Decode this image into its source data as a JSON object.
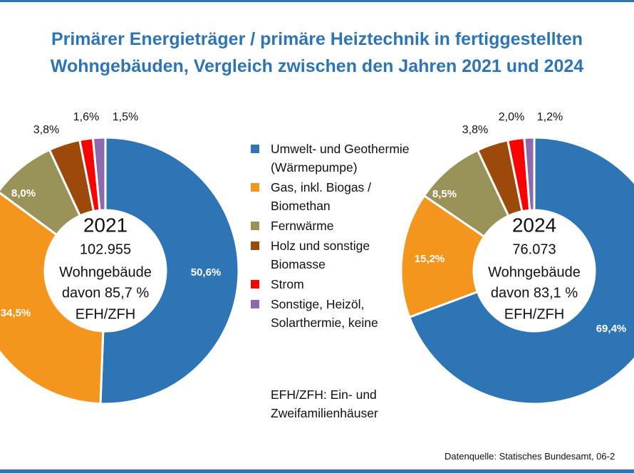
{
  "title_line1": "Primärer Energieträger / primäre Heiztechnik in fertiggestellten",
  "title_line2": "Wohngebäuden, Vergleich zwischen den Jahren 2021 und 2024",
  "legend": [
    {
      "label": "Umwelt- und Geothermie (Wärmepumpe)",
      "color": "#2e75b6"
    },
    {
      "label": "Gas, inkl. Biogas / Biomethan",
      "color": "#f4961e"
    },
    {
      "label": "Fernwärme",
      "color": "#9a9359"
    },
    {
      "label": "Holz und sonstige Biomasse",
      "color": "#9c4a0c"
    },
    {
      "label": "Strom",
      "color": "#fe0000"
    },
    {
      "label": "Sonstige, Heizöl, Solarthermie, keine",
      "color": "#8c6aad"
    }
  ],
  "note": "EFH/ZFH: Ein- und Zweifamilienhäuser",
  "source": "Datenquelle:  Statisches Bundesamt, 06-2",
  "chart_data": [
    {
      "type": "pie",
      "donut": true,
      "year": "2021",
      "center_lines": [
        "102.955",
        "Wohngebäude",
        "davon 85,7 %",
        "EFH/ZFH"
      ],
      "categories": [
        "Umwelt- und Geothermie (Wärmepumpe)",
        "Gas, inkl. Biogas / Biomethan",
        "Fernwärme",
        "Holz und sonstige Biomasse",
        "Strom",
        "Sonstige, Heizöl, Solarthermie, keine"
      ],
      "values": [
        50.6,
        34.5,
        8.0,
        3.8,
        1.6,
        1.5
      ],
      "labels": [
        "50,6%",
        "34,5%",
        "8,0%",
        "3,8%",
        "1,6%",
        "1,5%"
      ]
    },
    {
      "type": "pie",
      "donut": true,
      "year": "2024",
      "center_lines": [
        "76.073",
        "Wohngebäude",
        "davon 83,1 %",
        "EFH/ZFH"
      ],
      "categories": [
        "Umwelt- und Geothermie (Wärmepumpe)",
        "Gas, inkl. Biogas / Biomethan",
        "Fernwärme",
        "Holz und sonstige Biomasse",
        "Strom",
        "Sonstige, Heizöl, Solarthermie, keine"
      ],
      "values": [
        69.4,
        15.2,
        8.5,
        3.8,
        2.0,
        1.2
      ],
      "labels": [
        "69,4%",
        "15,2%",
        "8,5%",
        "3,8%",
        "2,0%",
        "1,2%"
      ]
    }
  ]
}
